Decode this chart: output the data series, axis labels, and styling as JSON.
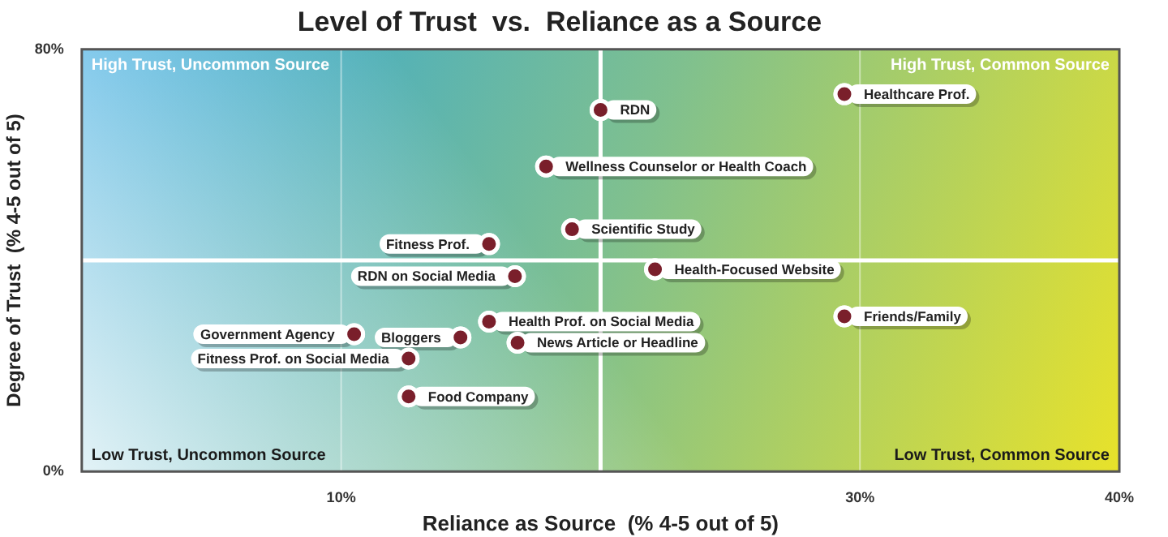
{
  "chart_data": {
    "type": "scatter",
    "title": "Level of Trust  vs.  Reliance as a Source",
    "xlabel": "Reliance as Source  (% 4-5 out of 5)",
    "ylabel": "Degree of Trust  (% 4-5 out of 5)",
    "series": [
      {
        "color": "#7a1f2b",
        "x": [
          29.4,
          20,
          17.9,
          18.9,
          15.7,
          16.7,
          22.1,
          29.4,
          15.7,
          10.5,
          14.6,
          16.8,
          12.6,
          12.6
        ],
        "values": [
          71.5,
          68.5,
          57.8,
          45.9,
          43.1,
          37.0,
          38.3,
          29.4,
          28.4,
          26.0,
          25.4,
          24.4,
          21.4,
          14.2
        ]
      }
    ],
    "xlim": [
      0,
      40
    ],
    "ylim": [
      0,
      80
    ],
    "xticks": [
      {
        "value": 0,
        "label": null
      },
      {
        "value": 10,
        "label": "10%"
      },
      {
        "value": 20,
        "label": null
      },
      {
        "value": 30,
        "label": "30%"
      },
      {
        "value": 40,
        "label": "40%"
      }
    ],
    "yticks": [
      {
        "value": 0,
        "label": "0%"
      },
      {
        "value": 80,
        "label": "80%"
      }
    ],
    "grid": "x",
    "legend": false,
    "marker": "circle",
    "ref_lines": [
      {
        "axis": "x",
        "value": 20,
        "color": "#ffffff"
      },
      {
        "axis": "y",
        "value": 40,
        "color": "#ffffff"
      }
    ],
    "annotations": [
      "High Trust, Uncommon Source",
      "High Trust, Common Source",
      "Low Trust, Uncommon Source",
      "Low Trust, Common Source",
      {
        "text": "Healthcare Prof.",
        "x": 29.4,
        "y": 71.5
      },
      {
        "text": "RDN",
        "x": 20,
        "y": 68.5
      },
      {
        "text": "Wellness Counselor or Health Coach",
        "x": 17.9,
        "y": 57.8
      },
      {
        "text": "Scientific Study",
        "x": 18.9,
        "y": 45.9
      },
      {
        "text": "Fitness Prof.",
        "x": 15.7,
        "y": 43.1
      },
      {
        "text": "RDN on Social Media",
        "x": 16.7,
        "y": 37.0
      },
      {
        "text": "Health-Focused Website",
        "x": 22.1,
        "y": 38.3
      },
      {
        "text": "Friends/Family",
        "x": 29.4,
        "y": 29.4
      },
      {
        "text": "Health Prof. on Social Media",
        "x": 15.7,
        "y": 28.4
      },
      {
        "text": "Government Agency",
        "x": 10.5,
        "y": 26.0
      },
      {
        "text": "Bloggers",
        "x": 14.6,
        "y": 25.4
      },
      {
        "text": "News Article or Headline",
        "x": 16.8,
        "y": 24.4
      },
      {
        "text": "Fitness Prof. on Social Media",
        "x": 12.6,
        "y": 21.4
      },
      {
        "text": "Food Company",
        "x": 12.6,
        "y": 14.2
      }
    ]
  }
}
